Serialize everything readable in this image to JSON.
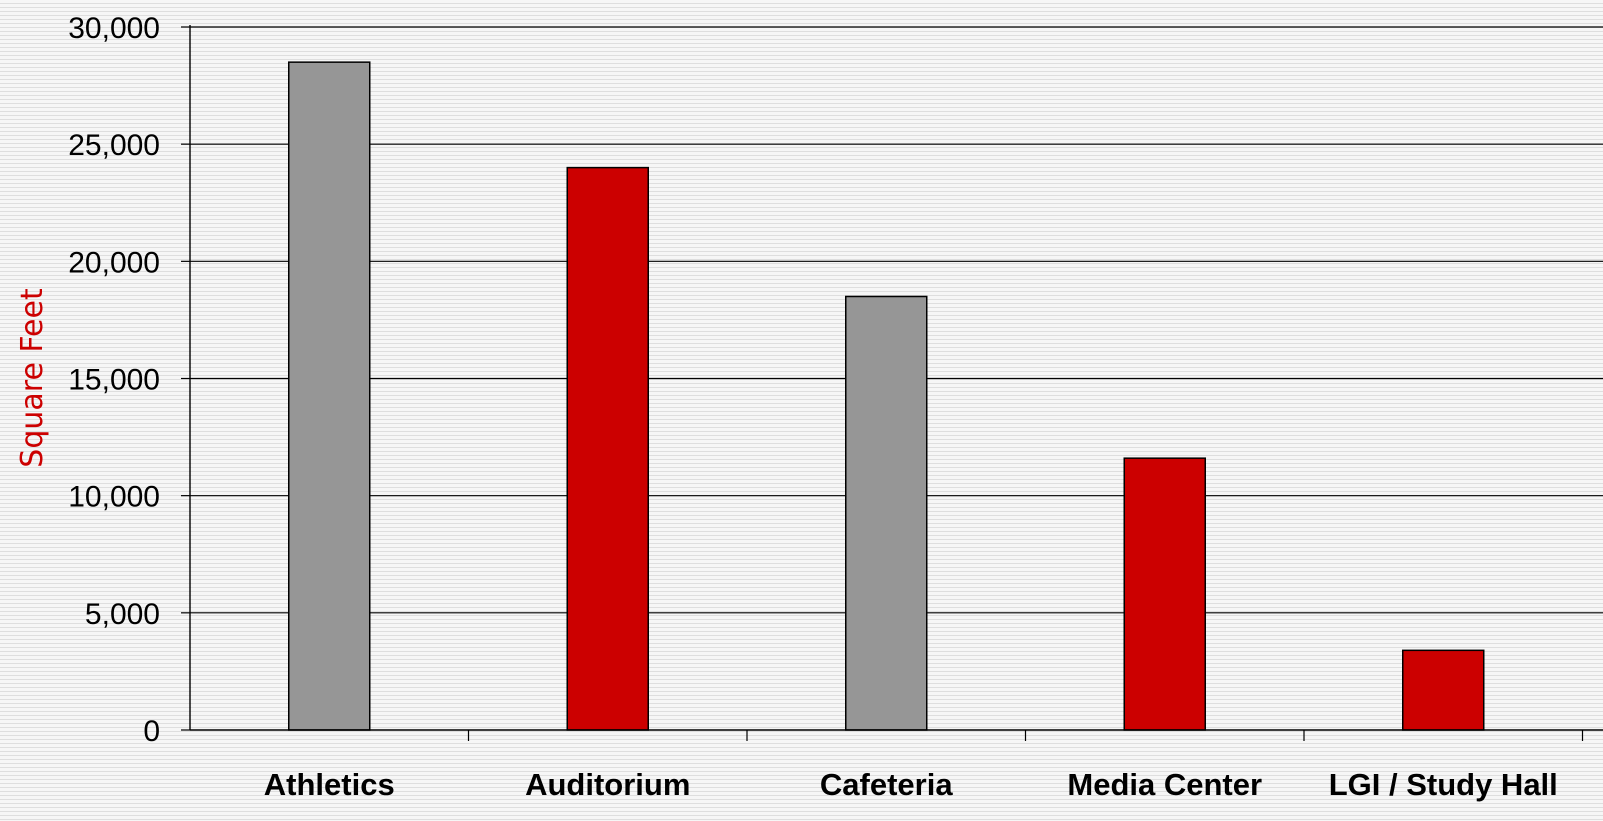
{
  "chart_data": {
    "type": "bar",
    "title": "",
    "xlabel": "",
    "ylabel": "Square Feet",
    "categories": [
      "Athletics",
      "Auditorium",
      "Cafeteria",
      "Media Center",
      "LGI / Study Hall"
    ],
    "values": [
      28500,
      24000,
      18500,
      11600,
      3400
    ],
    "ylim": [
      0,
      30000
    ],
    "yticks": [
      0,
      5000,
      10000,
      15000,
      20000,
      25000,
      30000
    ],
    "ytick_labels": [
      "0",
      "5,000",
      "10,000",
      "15,000",
      "20,000",
      "25,000",
      "30,000"
    ],
    "grid": true,
    "legend": "none",
    "bar_colors": [
      "#969696",
      "#cc0000",
      "#969696",
      "#cc0000",
      "#cc0000"
    ],
    "ylabel_color": "#cc0000",
    "gridline_color": "#000000",
    "bar_edge_color": "#000000"
  }
}
